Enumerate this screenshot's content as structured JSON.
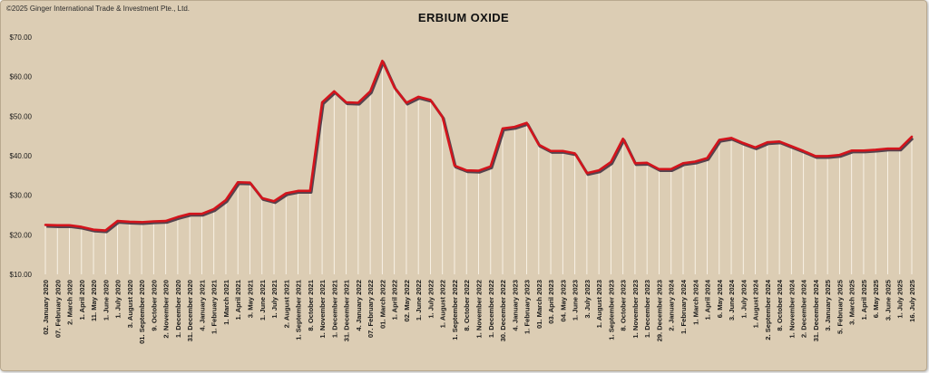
{
  "copyright": "©2025 Ginger International Trade & Investment Pte., Ltd.",
  "colors": {
    "background": "#dccdb4",
    "line": "#d4141c",
    "shadow": "#55434e",
    "drop": "#fffaf0"
  },
  "chart_data": {
    "type": "line",
    "title": "ERBIUM OXIDE",
    "xlabel": "",
    "ylabel": "",
    "ylim": [
      10,
      70
    ],
    "yticks": [
      "$10.00",
      "$20.00",
      "$30.00",
      "$40.00",
      "$50.00",
      "$60.00",
      "$70.00"
    ],
    "ytick_values": [
      10,
      20,
      30,
      40,
      50,
      60,
      70
    ],
    "grid": false,
    "legend": "none",
    "x_tick_labels": [
      "02. January 2020",
      "07. February 2020",
      "2. March 2020",
      "1. April 2020",
      "11. May 2020",
      "1. June 2020",
      "1. July 2020",
      "3. August 2020",
      "01. September 2020",
      "9. October 2020",
      "2. November 2020",
      "1. December 2020",
      "31. December 2020",
      "4. January 2021",
      "1. February 2021",
      "1. March 2021",
      "1. April 2021",
      "3. May 2021",
      "1. June 2021",
      "1. July 2021",
      "2. August 2021",
      "1. September 2021",
      "8. October 2021",
      "1. November 2021",
      "1. December 2021",
      "31. December 2021",
      "4. January 2022",
      "07. February 2022",
      "01. March 2022",
      "1. April 2022",
      "02. May 2022",
      "1. June 2022",
      "1. July 2022",
      "1. August 2022",
      "1. September 2022",
      "8. October 2022",
      "1. November 2022",
      "1. December 2022",
      "30. December 2022",
      "4. January 2023",
      "1. February 2023",
      "01. March 2023",
      "03. April 2023",
      "04. May 2023",
      "1. June 2023",
      "3. July 2023",
      "1. August 2023",
      "1. September 2023",
      "8. October 2023",
      "1. November 2023",
      "1. December 2023",
      "29. December 2023",
      "2. January 2024",
      "1. February 2024",
      "1. March 2024",
      "1. April 2024",
      "6. May 2024",
      "3. June 2024",
      "1. July 2024",
      "1. August 2024",
      "2. September 2024",
      "8. October 2024",
      "1. November 2024",
      "2. December 2024",
      "31. December 2024",
      "3. January 2025",
      "5. February 2025",
      "3. March 2025",
      "1. April 2025",
      "6. May 2025",
      "3. June 2025",
      "1. July 2025",
      "16. July 2025"
    ],
    "series": [
      {
        "values": [
          22.5,
          22.4,
          22.4,
          22.0,
          21.3,
          21.1,
          23.5,
          23.3,
          23.2,
          23.4,
          23.5,
          24.5,
          25.3,
          25.3,
          26.5,
          28.8,
          33.3,
          33.2,
          29.3,
          28.5,
          30.5,
          31.1,
          31.1,
          53.5,
          56.3,
          53.5,
          53.4,
          56.3,
          64.0,
          57.3,
          53.4,
          54.9,
          54.1,
          49.8,
          37.5,
          36.3,
          36.2,
          37.3,
          46.9,
          47.3,
          48.3,
          42.8,
          41.2,
          41.2,
          40.6,
          35.6,
          36.3,
          38.4,
          44.3,
          38.1,
          38.2,
          36.6,
          36.6,
          38.1,
          38.5,
          39.4,
          44.0,
          44.5,
          43.2,
          42.1,
          43.4,
          43.6,
          42.4,
          41.2,
          39.9,
          39.9,
          40.2,
          41.3,
          41.3,
          41.5,
          41.8,
          41.8,
          44.8
        ]
      }
    ]
  }
}
